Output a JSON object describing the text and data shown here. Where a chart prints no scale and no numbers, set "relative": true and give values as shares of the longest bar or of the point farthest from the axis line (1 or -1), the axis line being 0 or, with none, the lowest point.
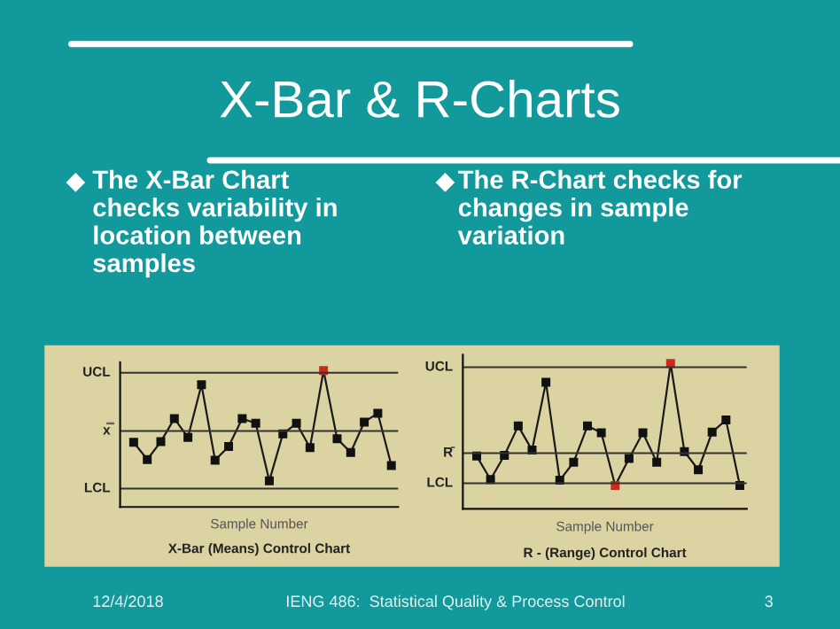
{
  "chart_data": [
    {
      "type": "line",
      "relative": true,
      "title": "X-Bar (Means) Control Chart",
      "xlabel": "Sample Number",
      "marker": "square",
      "categories": [
        null,
        null,
        null,
        null,
        null,
        null,
        null,
        null,
        null,
        null,
        null,
        null,
        null,
        null,
        null,
        null,
        null,
        null,
        null,
        null
      ],
      "series": [
        {
          "color": "#1a1a1a",
          "colors": [
            "#111111",
            "#111111",
            "#111111",
            "#111111",
            "#111111",
            "#111111",
            "#111111",
            "#111111",
            "#111111",
            "#111111",
            "#111111",
            "#111111",
            "#111111",
            "#111111",
            "#cc2a1a",
            "#111111",
            "#111111",
            "#111111",
            "#111111",
            "#111111"
          ],
          "values": [
            0.474,
            0.348,
            0.478,
            0.648,
            0.509,
            0.896,
            0.343,
            0.443,
            0.648,
            0.613,
            0.191,
            0.535,
            0.613,
            0.435,
            1,
            0.5,
            0.4,
            0.622,
            0.687,
            0.304
          ]
        }
      ],
      "ref_lines": [
        {
          "axis": "y",
          "value": 0.983,
          "label": "UCL",
          "color": "#333333"
        },
        {
          "axis": "y",
          "value": 0.557,
          "label": "x̿",
          "color": "#333333"
        },
        {
          "axis": "y",
          "value": 0.135,
          "label": "LCL",
          "color": "#333333"
        }
      ],
      "annotations": [
        "X-Bar & R-Charts",
        "The X-Bar Chart\nchecks variability in\nlocation between\nsamples",
        "12/4/2018",
        "IENG 486:  Statistical Quality & Process Control",
        "3"
      ]
    },
    {
      "type": "line",
      "relative": true,
      "title": "R - (Range) Control Chart",
      "xlabel": "Sample Number",
      "marker": "square",
      "categories": [
        null,
        null,
        null,
        null,
        null,
        null,
        null,
        null,
        null,
        null,
        null,
        null,
        null,
        null,
        null,
        null,
        null,
        null,
        null,
        null
      ],
      "series": [
        {
          "color": "#1a1a1a",
          "colors": [
            "#111111",
            "#111111",
            "#111111",
            "#111111",
            "#111111",
            "#111111",
            "#111111",
            "#111111",
            "#111111",
            "#111111",
            "#cc2a1a",
            "#111111",
            "#111111",
            "#111111",
            "#cc2a1a",
            "#111111",
            "#111111",
            "#111111",
            "#111111",
            "#111111"
          ],
          "values": [
            0.363,
            0.202,
            0.368,
            0.57,
            0.404,
            0.87,
            0.197,
            0.321,
            0.57,
            0.523,
            0.161,
            0.347,
            0.523,
            0.321,
            1,
            0.394,
            0.269,
            0.528,
            0.611,
            0.161
          ]
        }
      ],
      "ref_lines": [
        {
          "axis": "y",
          "value": 0.974,
          "label": "UCL",
          "color": "#333333"
        },
        {
          "axis": "y",
          "value": 0.383,
          "label": "R̄",
          "color": "#333333"
        },
        {
          "axis": "y",
          "value": 0.176,
          "label": "LCL",
          "color": "#333333"
        }
      ],
      "annotations": [
        "The R-Chart checks for\nchanges in sample\nvariation"
      ]
    }
  ]
}
